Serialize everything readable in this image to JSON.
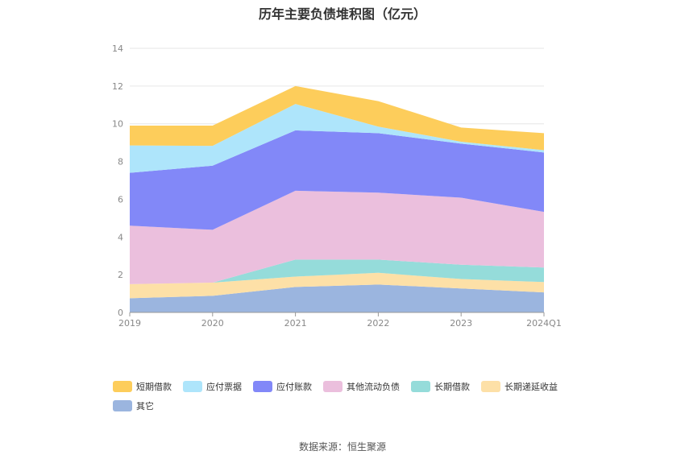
{
  "source_text": "数据来源：恒生聚源",
  "chart_data": {
    "type": "area",
    "stacked": true,
    "title": "历年主要负债堆积图（亿元）",
    "x": [
      "2019",
      "2020",
      "2021",
      "2022",
      "2023",
      "2024Q1"
    ],
    "ylim": [
      0,
      14
    ],
    "yticks": [
      0,
      2,
      4,
      6,
      8,
      10,
      12,
      14
    ],
    "grid": true,
    "legend_position": "bottom-left",
    "series": [
      {
        "name": "其它",
        "color": "#9bb5df",
        "values": [
          0.75,
          0.88,
          1.35,
          1.48,
          1.27,
          1.06
        ]
      },
      {
        "name": "长期递延收益",
        "color": "#fde0a7",
        "values": [
          0.75,
          0.7,
          0.55,
          0.62,
          0.5,
          0.55
        ]
      },
      {
        "name": "长期借款",
        "color": "#95dcda",
        "values": [
          0.0,
          0.0,
          0.9,
          0.7,
          0.76,
          0.77
        ]
      },
      {
        "name": "其他流动负债",
        "color": "#ebbfdd",
        "values": [
          3.1,
          2.8,
          3.65,
          3.55,
          3.55,
          2.95
        ]
      },
      {
        "name": "应付账款",
        "color": "#8288f8",
        "values": [
          2.8,
          3.4,
          3.2,
          3.15,
          2.87,
          3.15
        ]
      },
      {
        "name": "应付票据",
        "color": "#aee5fb",
        "values": [
          1.45,
          1.05,
          1.4,
          0.35,
          0.1,
          0.12
        ]
      },
      {
        "name": "短期借款",
        "color": "#fdcd5b",
        "values": [
          1.05,
          1.07,
          0.95,
          1.35,
          0.75,
          0.9
        ]
      }
    ],
    "legend_order": [
      "短期借款",
      "应付票据",
      "应付账款",
      "其他流动负债",
      "长期借款",
      "长期递延收益",
      "其它"
    ]
  }
}
